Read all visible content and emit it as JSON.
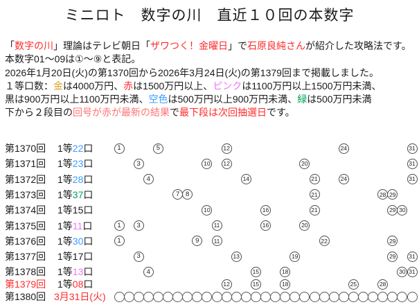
{
  "title": "ミニロト　数字の川　直近１０回の本数字",
  "colors": {
    "red": "#fd2b2b",
    "salmon": "#ff7373",
    "gold": "#dc9f22",
    "pink": "#f276f2",
    "skyblue": "#3b9dff",
    "green": "#00a45c",
    "black": "#1a1a1a"
  },
  "intro": {
    "lines": [
      [
        {
          "t": "「"
        },
        {
          "t": "数字の川",
          "c": "red"
        },
        {
          "t": "」理論はテレビ朝日「"
        },
        {
          "t": "ザワつく！金曜日",
          "c": "red"
        },
        {
          "t": "」で"
        },
        {
          "t": "石原良純さん",
          "c": "red"
        },
        {
          "t": "が紹介した攻略法です。"
        }
      ],
      [
        {
          "t": "本数字01〜09は①〜⑨と表記。"
        }
      ],
      [
        {
          "t": "2026年1月20日(火)の第1370回から2026年3月24日(火)の第1379回まで掲載しました。"
        }
      ],
      [
        {
          "t": "１等口数："
        },
        {
          "t": "金",
          "c": "gold"
        },
        {
          "t": "は4000万円、"
        },
        {
          "t": "赤",
          "c": "red"
        },
        {
          "t": "は1500万円以上、"
        },
        {
          "t": "ピンク",
          "c": "pink"
        },
        {
          "t": "は1100万円以上1500万円未満、"
        }
      ],
      [
        {
          "t": "黒は900万円以上1100万円未満、"
        },
        {
          "t": "空色",
          "c": "skyblue"
        },
        {
          "t": "は500万円以上900万円未満、"
        },
        {
          "t": "緑",
          "c": "green"
        },
        {
          "t": "は500万円未満"
        }
      ],
      [
        {
          "t": "下から２段目の"
        },
        {
          "t": "回号が赤が最新の結果",
          "c": "salmon"
        },
        {
          "t": "で"
        },
        {
          "t": "最下段は次回抽選日",
          "c": "red"
        },
        {
          "t": "です。"
        }
      ]
    ]
  },
  "table": {
    "number_range": {
      "min": 1,
      "max": 31
    },
    "prize_prefix": "1等",
    "prize_suffix": "口",
    "rows": [
      {
        "round": "第1370回",
        "prize_count": "22",
        "count_color": "skyblue",
        "numbers": [
          1,
          5,
          12,
          24,
          31
        ]
      },
      {
        "round": "第1371回",
        "prize_count": "23",
        "count_color": "skyblue",
        "numbers": [
          3,
          10,
          12,
          20,
          31
        ]
      },
      {
        "round": "第1372回",
        "prize_count": "28",
        "count_color": "skyblue",
        "numbers": [
          4,
          14,
          21,
          24,
          31
        ]
      },
      {
        "round": "第1373回",
        "prize_count": "37",
        "count_color": "green",
        "numbers": [
          7,
          8,
          21,
          28,
          29
        ]
      },
      {
        "round": "第1374回",
        "prize_count": "15",
        "count_color": "black",
        "numbers": [
          10,
          16,
          21,
          29,
          30
        ]
      },
      {
        "round": "第1375回",
        "prize_count": "11",
        "count_color": "pink",
        "numbers": [
          1,
          3,
          11,
          16,
          20
        ]
      },
      {
        "round": "第1376回",
        "prize_count": "30",
        "count_color": "skyblue",
        "numbers": [
          1,
          9,
          11,
          22,
          29
        ]
      },
      {
        "round": "第1377回",
        "prize_count": "17",
        "count_color": "black",
        "numbers": [
          3,
          13,
          19,
          29,
          31
        ]
      },
      {
        "round": "第1378回",
        "prize_count": "13",
        "count_color": "pink",
        "numbers": [
          4,
          15,
          18,
          30,
          31
        ]
      },
      {
        "round": "第1379回",
        "round_color": "red",
        "prize_count": "08",
        "count_color": "red",
        "numbers": [
          12,
          15,
          18,
          25,
          28
        ]
      }
    ],
    "next_draw": {
      "round": "第1380回",
      "date": "3月31日(火)",
      "date_color": "red",
      "circle_count": 31
    }
  }
}
